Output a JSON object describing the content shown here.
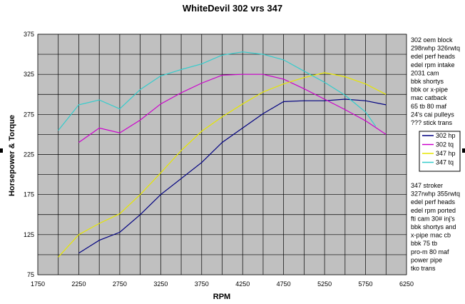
{
  "chart_data": {
    "type": "line",
    "title": "WhiteDevil 302 vrs 347",
    "xlabel": "RPM",
    "ylabel": "Horsepower & Torque",
    "xlim": [
      1750,
      6250
    ],
    "ylim": [
      75,
      375
    ],
    "xticks": [
      1750,
      2250,
      2750,
      3250,
      3750,
      4250,
      4750,
      5250,
      5750,
      6250
    ],
    "yticks": [
      75,
      125,
      175,
      225,
      275,
      325,
      375
    ],
    "grid": true,
    "legend_position": "right",
    "series": [
      {
        "name": "302 hp",
        "color": "#000080",
        "points": [
          [
            2250,
            102
          ],
          [
            2500,
            118
          ],
          [
            2750,
            128
          ],
          [
            3000,
            150
          ],
          [
            3250,
            175
          ],
          [
            3500,
            195
          ],
          [
            3750,
            215
          ],
          [
            4000,
            240
          ],
          [
            4250,
            258
          ],
          [
            4500,
            276
          ],
          [
            4750,
            291
          ],
          [
            5000,
            292
          ],
          [
            5250,
            292
          ],
          [
            5500,
            294
          ],
          [
            5750,
            292
          ],
          [
            6000,
            287
          ]
        ]
      },
      {
        "name": "302 tq",
        "color": "#cc00cc",
        "points": [
          [
            2250,
            240
          ],
          [
            2500,
            258
          ],
          [
            2750,
            252
          ],
          [
            3000,
            268
          ],
          [
            3250,
            288
          ],
          [
            3500,
            302
          ],
          [
            3750,
            314
          ],
          [
            4000,
            324
          ],
          [
            4250,
            325
          ],
          [
            4500,
            325
          ],
          [
            4750,
            319
          ],
          [
            5000,
            307
          ],
          [
            5250,
            294
          ],
          [
            5500,
            281
          ],
          [
            5750,
            267
          ],
          [
            6000,
            250
          ]
        ]
      },
      {
        "name": "347 hp",
        "color": "#e6e600",
        "points": [
          [
            2000,
            97
          ],
          [
            2250,
            125
          ],
          [
            2500,
            139
          ],
          [
            2750,
            151
          ],
          [
            3000,
            175
          ],
          [
            3250,
            202
          ],
          [
            3500,
            230
          ],
          [
            3750,
            254
          ],
          [
            4000,
            272
          ],
          [
            4250,
            288
          ],
          [
            4500,
            303
          ],
          [
            4750,
            313
          ],
          [
            5000,
            321
          ],
          [
            5250,
            327
          ],
          [
            5500,
            322
          ],
          [
            5750,
            313
          ],
          [
            6000,
            300
          ]
        ]
      },
      {
        "name": "347 tq",
        "color": "#33cccc",
        "points": [
          [
            2000,
            255
          ],
          [
            2250,
            287
          ],
          [
            2500,
            293
          ],
          [
            2750,
            282
          ],
          [
            3000,
            306
          ],
          [
            3250,
            323
          ],
          [
            3500,
            331
          ],
          [
            3750,
            338
          ],
          [
            4000,
            349
          ],
          [
            4250,
            353
          ],
          [
            4500,
            350
          ],
          [
            4750,
            343
          ],
          [
            5000,
            329
          ],
          [
            5250,
            315
          ],
          [
            5500,
            299
          ],
          [
            5750,
            278
          ],
          [
            5875,
            260
          ]
        ]
      }
    ]
  },
  "notes": {
    "car1": [
      "302  oem block",
      "298rwhp  326rwtq",
      "edel perf heads",
      "edel rpm intake",
      "2031 cam",
      "bbk shortys",
      "bbk or x-pipe",
      "mac catback",
      "65 tb  80 maf",
      "24's  cai pulleys",
      "??? stick trans"
    ],
    "car2": [
      "347 stroker",
      "327rwhp  355rwtq",
      "edel perf heads",
      "edel rpm ported",
      "fti cam  30# inj's",
      "bbk shortys and",
      "x-pipe   mac cb",
      "bbk 75 tb",
      "pro-m 80 maf",
      "power pipe",
      "tko trans"
    ]
  }
}
